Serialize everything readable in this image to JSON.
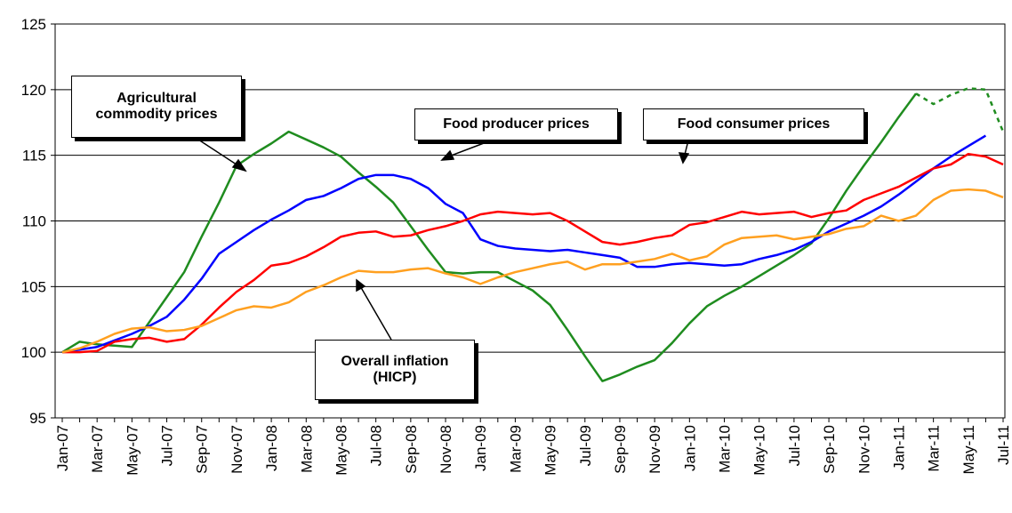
{
  "chart_data": {
    "type": "line",
    "categories": [
      "Jan-07",
      null,
      "Mar-07",
      null,
      "May-07",
      null,
      "Jul-07",
      null,
      "Sep-07",
      null,
      "Nov-07",
      null,
      "Jan-08",
      null,
      "Mar-08",
      null,
      "May-08",
      null,
      "Jul-08",
      null,
      "Sep-08",
      null,
      "Nov-08",
      null,
      "Jan-09",
      null,
      "Mar-09",
      null,
      "May-09",
      null,
      "Jul-09",
      null,
      "Sep-09",
      null,
      "Nov-09",
      null,
      "Jan-10",
      null,
      "Mar-10",
      null,
      "May-10",
      null,
      "Jul-10",
      null,
      "Sep-10",
      null,
      "Nov-10",
      null,
      "Jan-11",
      null,
      "Mar-11",
      null,
      "May-11",
      null,
      "Jul-11"
    ],
    "series": [
      {
        "name": "Agricultural commodity prices",
        "color": "#1f8c1f",
        "dashed_from": 49,
        "values": [
          100,
          100.8,
          100.6,
          100.5,
          100.4,
          102.3,
          104.2,
          106.1,
          108.8,
          111.4,
          114.2,
          115.1,
          115.9,
          116.8,
          116.2,
          115.6,
          114.9,
          113.7,
          112.6,
          111.4,
          109.6,
          107.8,
          106.1,
          106.0,
          106.1,
          106.1,
          105.4,
          104.7,
          103.6,
          101.7,
          99.7,
          97.8,
          98.3,
          98.9,
          99.4,
          100.7,
          102.2,
          103.5,
          104.3,
          105.0,
          105.8,
          106.6,
          107.4,
          108.3,
          110.2,
          112.3,
          114.2,
          116.0,
          117.9,
          119.7,
          118.9,
          119.6,
          120.1,
          120.0,
          116.8
        ]
      },
      {
        "name": "Food producer prices",
        "color": "#0000ff",
        "values": [
          100,
          100.2,
          100.4,
          100.9,
          101.4,
          102.0,
          102.7,
          104.0,
          105.6,
          107.5,
          108.4,
          109.3,
          110.1,
          110.8,
          111.6,
          111.9,
          112.5,
          113.2,
          113.5,
          113.5,
          113.2,
          112.5,
          111.3,
          110.6,
          108.6,
          108.1,
          107.9,
          107.8,
          107.7,
          107.8,
          107.6,
          107.4,
          107.2,
          106.5,
          106.5,
          106.7,
          106.8,
          106.7,
          106.6,
          106.7,
          107.1,
          107.4,
          107.8,
          108.4,
          109.2,
          109.8,
          110.4,
          111.1,
          112.0,
          113.0,
          114.0,
          114.9,
          115.7,
          116.5,
          null
        ]
      },
      {
        "name": "Food consumer prices",
        "color": "#ff0000",
        "values": [
          100,
          100.0,
          100.1,
          100.8,
          101.0,
          101.1,
          100.8,
          101.0,
          102.1,
          103.4,
          104.6,
          105.5,
          106.6,
          106.8,
          107.3,
          108.0,
          108.8,
          109.1,
          109.2,
          108.8,
          108.9,
          109.3,
          109.6,
          110.0,
          110.5,
          110.7,
          110.6,
          110.5,
          110.6,
          110.0,
          109.2,
          108.4,
          108.2,
          108.4,
          108.7,
          108.9,
          109.7,
          109.9,
          110.3,
          110.7,
          110.5,
          110.6,
          110.7,
          110.3,
          110.6,
          110.8,
          111.6,
          112.1,
          112.6,
          113.3,
          114.0,
          114.3,
          115.1,
          114.9,
          114.3
        ]
      },
      {
        "name": "Overall inflation (HICP)",
        "color": "#ffa020",
        "values": [
          100,
          100.3,
          100.8,
          101.4,
          101.8,
          101.9,
          101.6,
          101.7,
          102.0,
          102.6,
          103.2,
          103.5,
          103.4,
          103.8,
          104.6,
          105.1,
          105.7,
          106.2,
          106.1,
          106.1,
          106.3,
          106.4,
          106.0,
          105.7,
          105.2,
          105.7,
          106.1,
          106.4,
          106.7,
          106.9,
          106.3,
          106.7,
          106.7,
          106.9,
          107.1,
          107.5,
          107.0,
          107.3,
          108.2,
          108.7,
          108.8,
          108.9,
          108.6,
          108.8,
          109.0,
          109.4,
          109.6,
          110.4,
          110.0,
          110.4,
          111.6,
          112.3,
          112.4,
          112.3,
          111.8
        ]
      }
    ],
    "ylim": [
      95,
      125
    ],
    "yticks": [
      95,
      100,
      105,
      110,
      115,
      120,
      125
    ],
    "grid": true
  }
}
